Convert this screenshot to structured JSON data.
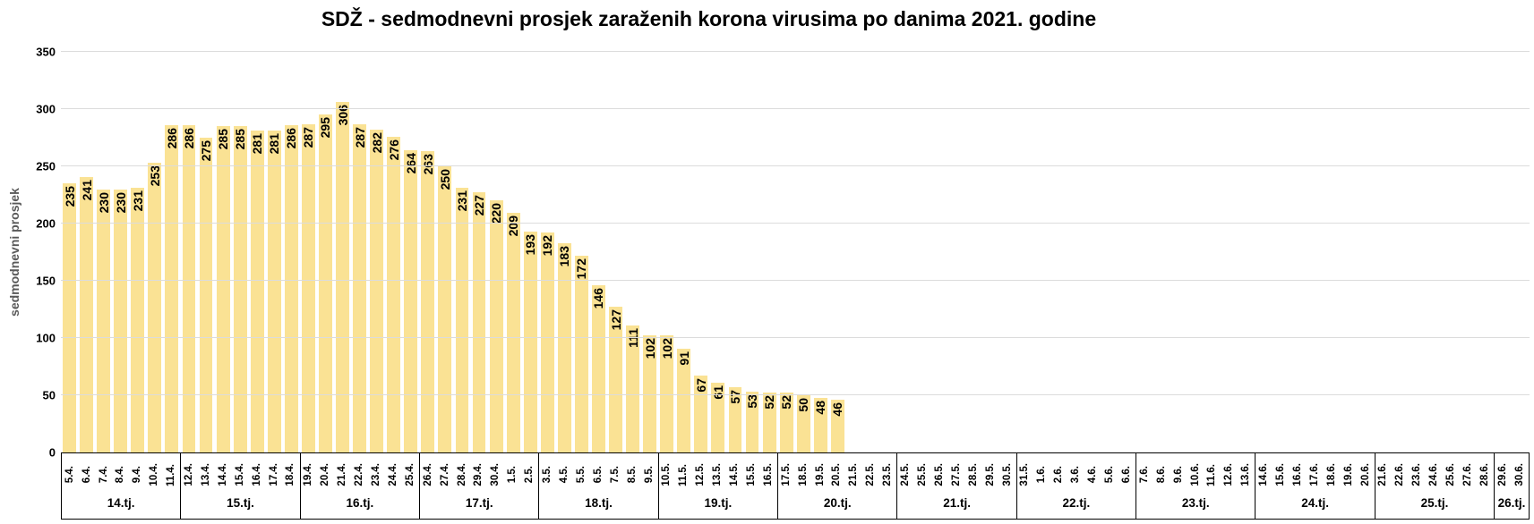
{
  "chart_data": {
    "type": "bar",
    "title": "SDŽ - sedmodnevni prosjek zaraženih korona virusima po danima 2021. godine",
    "ylabel": "sedmodnevni prosjek",
    "xlabel": "",
    "ylim": [
      0,
      350
    ],
    "yticks": [
      0,
      50,
      100,
      150,
      200,
      250,
      300,
      350
    ],
    "grid": true,
    "legend": "none",
    "bar_color": "#FAE294",
    "grid_color": "#dcdcdc",
    "label_color": "#000000",
    "axis_title_color": "#595959",
    "weeks": [
      {
        "label": "14.tj.",
        "days": [
          "5.4.",
          "6.4.",
          "7.4.",
          "8.4.",
          "9.4.",
          "10.4.",
          "11.4."
        ]
      },
      {
        "label": "15.tj.",
        "days": [
          "12.4.",
          "13.4.",
          "14.4.",
          "15.4.",
          "16.4.",
          "17.4.",
          "18.4."
        ]
      },
      {
        "label": "16.tj.",
        "days": [
          "19.4.",
          "20.4.",
          "21.4.",
          "22.4.",
          "23.4.",
          "24.4.",
          "25.4."
        ]
      },
      {
        "label": "17.tj.",
        "days": [
          "26.4.",
          "27.4.",
          "28.4.",
          "29.4.",
          "30.4.",
          "1.5.",
          "2.5."
        ]
      },
      {
        "label": "18.tj.",
        "days": [
          "3.5.",
          "4.5.",
          "5.5.",
          "6.5.",
          "7.5.",
          "8.5.",
          "9.5."
        ]
      },
      {
        "label": "19.tj.",
        "days": [
          "10.5.",
          "11.5.",
          "12.5.",
          "13.5.",
          "14.5.",
          "15.5.",
          "16.5."
        ]
      },
      {
        "label": "20.tj.",
        "days": [
          "17.5.",
          "18.5.",
          "19.5.",
          "20.5.",
          "21.5.",
          "22.5.",
          "23.5."
        ]
      },
      {
        "label": "21.tj.",
        "days": [
          "24.5.",
          "25.5.",
          "26.5.",
          "27.5.",
          "28.5.",
          "29.5.",
          "30.5."
        ]
      },
      {
        "label": "22.tj.",
        "days": [
          "31.5.",
          "1.6.",
          "2.6.",
          "3.6.",
          "4.6.",
          "5.6.",
          "6.6."
        ]
      },
      {
        "label": "23.tj.",
        "days": [
          "7.6.",
          "8.6.",
          "9.6.",
          "10.6.",
          "11.6.",
          "12.6.",
          "13.6."
        ]
      },
      {
        "label": "24.tj.",
        "days": [
          "14.6.",
          "15.6.",
          "16.6.",
          "17.6.",
          "18.6.",
          "19.6.",
          "20.6."
        ]
      },
      {
        "label": "25.tj.",
        "days": [
          "21.6.",
          "22.6.",
          "23.6.",
          "24.6.",
          "25.6.",
          "27.6.",
          "28.6."
        ]
      },
      {
        "label": "26.tj.",
        "days": [
          "29.6.",
          "30.6."
        ]
      }
    ],
    "series": [
      {
        "date": "5.4.",
        "value": 235
      },
      {
        "date": "6.4.",
        "value": 241
      },
      {
        "date": "7.4.",
        "value": 230
      },
      {
        "date": "8.4.",
        "value": 230
      },
      {
        "date": "9.4.",
        "value": 231
      },
      {
        "date": "10.4.",
        "value": 253
      },
      {
        "date": "11.4.",
        "value": 286
      },
      {
        "date": "12.4.",
        "value": 286
      },
      {
        "date": "13.4.",
        "value": 275
      },
      {
        "date": "14.4.",
        "value": 285
      },
      {
        "date": "15.4.",
        "value": 285
      },
      {
        "date": "16.4.",
        "value": 281
      },
      {
        "date": "17.4.",
        "value": 281
      },
      {
        "date": "18.4.",
        "value": 286
      },
      {
        "date": "19.4.",
        "value": 287
      },
      {
        "date": "20.4.",
        "value": 295
      },
      {
        "date": "21.4.",
        "value": 306
      },
      {
        "date": "22.4.",
        "value": 287
      },
      {
        "date": "23.4.",
        "value": 282
      },
      {
        "date": "24.4.",
        "value": 276
      },
      {
        "date": "25.4.",
        "value": 264
      },
      {
        "date": "26.4.",
        "value": 263
      },
      {
        "date": "27.4.",
        "value": 250
      },
      {
        "date": "28.4.",
        "value": 231
      },
      {
        "date": "29.4.",
        "value": 227
      },
      {
        "date": "30.4.",
        "value": 220
      },
      {
        "date": "1.5.",
        "value": 209
      },
      {
        "date": "2.5.",
        "value": 193
      },
      {
        "date": "3.5.",
        "value": 192
      },
      {
        "date": "4.5.",
        "value": 183
      },
      {
        "date": "5.5.",
        "value": 172
      },
      {
        "date": "6.5.",
        "value": 146
      },
      {
        "date": "7.5.",
        "value": 127
      },
      {
        "date": "8.5.",
        "value": 111
      },
      {
        "date": "9.5.",
        "value": 102
      },
      {
        "date": "10.5.",
        "value": 102
      },
      {
        "date": "11.5.",
        "value": 91
      },
      {
        "date": "12.5.",
        "value": 67
      },
      {
        "date": "13.5.",
        "value": 61
      },
      {
        "date": "14.5.",
        "value": 57
      },
      {
        "date": "15.5.",
        "value": 53
      },
      {
        "date": "16.5.",
        "value": 52
      },
      {
        "date": "17.5.",
        "value": 52
      },
      {
        "date": "18.5.",
        "value": 50
      },
      {
        "date": "19.5.",
        "value": 48
      },
      {
        "date": "20.5.",
        "value": 46
      }
    ]
  }
}
